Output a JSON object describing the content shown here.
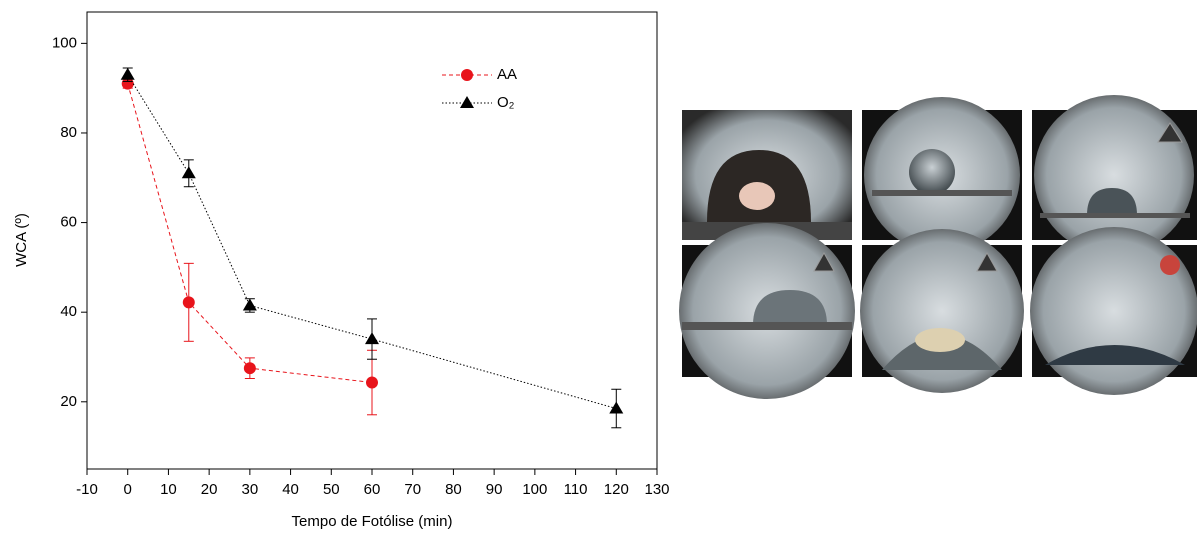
{
  "chart_data": {
    "type": "line",
    "x_label": "Tempo de Fotólise (min)",
    "y_label": "WCA (º)",
    "xlim": [
      -10,
      130
    ],
    "xticks": [
      -10,
      0,
      10,
      20,
      30,
      40,
      50,
      60,
      70,
      80,
      90,
      100,
      110,
      120,
      130
    ],
    "ylim": [
      5,
      107
    ],
    "yticks": [
      20,
      40,
      60,
      80,
      100
    ],
    "legend": "upper right",
    "series": [
      {
        "name": "AA",
        "color": "#e8141b",
        "line": "dashed",
        "marker": "circle",
        "x": [
          0,
          15,
          30,
          60
        ],
        "values": [
          91,
          42.2,
          27.5,
          24.3
        ],
        "errors": [
          1,
          8.7,
          2.3,
          7.2
        ]
      },
      {
        "name": "O₂",
        "color": "#000000",
        "line": "dotted",
        "marker": "triangle",
        "x": [
          0,
          15,
          30,
          60,
          120
        ],
        "values": [
          93,
          71,
          41.5,
          34,
          18.5
        ],
        "errors": [
          1.5,
          3,
          1.5,
          4.5,
          4.3
        ]
      }
    ]
  }
}
